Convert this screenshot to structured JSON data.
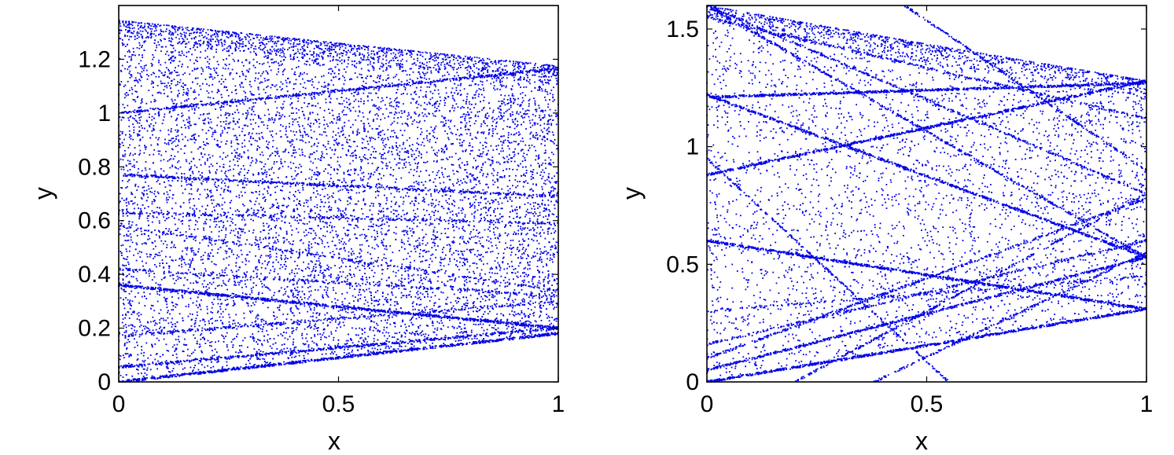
{
  "chart_data": [
    {
      "type": "scatter",
      "xlabel": "x",
      "ylabel": "y",
      "xlim": [
        0,
        1
      ],
      "ylim": [
        0,
        1.4
      ],
      "xticks": [
        0,
        0.5,
        1
      ],
      "xtick_labels": [
        "0",
        "0.5",
        "1"
      ],
      "yticks": [
        0,
        0.2,
        0.4,
        0.6,
        0.8,
        1,
        1.2
      ],
      "ytick_labels": [
        "0",
        "0.2",
        "0.4",
        "0.6",
        "0.8",
        "1",
        "1.2"
      ],
      "grid": false,
      "color": "#0000e6",
      "upper_boundary": [
        [
          0,
          1.345
        ],
        [
          1,
          1.175
        ]
      ],
      "lower_boundary": [
        [
          0,
          0.0
        ],
        [
          1,
          0.18
        ]
      ],
      "curves": [
        {
          "x": [
            0,
            1
          ],
          "y": [
            0.0,
            0.18
          ],
          "density": 1.0
        },
        {
          "x": [
            0,
            1
          ],
          "y": [
            0.055,
            0.2
          ],
          "density": 0.6
        },
        {
          "x": [
            0,
            1
          ],
          "y": [
            0.36,
            0.2
          ],
          "density": 1.0
        },
        {
          "x": [
            0,
            1
          ],
          "y": [
            0.77,
            0.69
          ],
          "density": 0.5
        },
        {
          "x": [
            0,
            1
          ],
          "y": [
            1.0,
            1.165
          ],
          "density": 0.6
        },
        {
          "x": [
            0,
            1
          ],
          "y": [
            0.63,
            0.59
          ],
          "density": 0.3
        },
        {
          "x": [
            0,
            1
          ],
          "y": [
            0.17,
            0.3
          ],
          "density": 0.3
        },
        {
          "x": [
            0,
            1
          ],
          "y": [
            0.42,
            0.32
          ],
          "density": 0.25
        },
        {
          "x": [
            0,
            1
          ],
          "y": [
            0.58,
            0.34
          ],
          "density": 0.25
        }
      ],
      "background_points": 9000
    },
    {
      "type": "scatter",
      "xlabel": "x",
      "ylabel": "y",
      "xlim": [
        0,
        1
      ],
      "ylim": [
        0,
        1.6
      ],
      "xticks": [
        0,
        0.5,
        1
      ],
      "xtick_labels": [
        "0",
        "0.5",
        "1"
      ],
      "yticks": [
        0,
        0.5,
        1,
        1.5
      ],
      "ytick_labels": [
        "0",
        "0.5",
        "1",
        "1.5"
      ],
      "grid": false,
      "color": "#0000e6",
      "upper_boundary": [
        [
          0,
          1.6
        ],
        [
          0.55,
          1.42
        ],
        [
          1,
          1.28
        ]
      ],
      "lower_boundary": [
        [
          0,
          0.0
        ],
        [
          1,
          0.31
        ]
      ],
      "curves": [
        {
          "x": [
            0,
            1
          ],
          "y": [
            0.0,
            0.31
          ],
          "density": 1.0
        },
        {
          "x": [
            0,
            1
          ],
          "y": [
            0.05,
            0.53
          ],
          "density": 0.8
        },
        {
          "x": [
            0,
            1
          ],
          "y": [
            0.6,
            0.31
          ],
          "density": 1.0
        },
        {
          "x": [
            0,
            1
          ],
          "y": [
            0.88,
            1.28
          ],
          "density": 0.9
        },
        {
          "x": [
            0,
            1
          ],
          "y": [
            1.22,
            0.53
          ],
          "density": 0.9
        },
        {
          "x": [
            0,
            1
          ],
          "y": [
            1.21,
            1.27
          ],
          "density": 0.9
        },
        {
          "x": [
            0,
            1
          ],
          "y": [
            1.6,
            0.53
          ],
          "density": 0.6
        },
        {
          "x": [
            0,
            1
          ],
          "y": [
            1.6,
            0.8
          ],
          "density": 0.5
        },
        {
          "x": [
            0,
            1
          ],
          "y": [
            1.55,
            1.12
          ],
          "density": 0.4
        },
        {
          "x": [
            0,
            1
          ],
          "y": [
            0.1,
            0.78
          ],
          "density": 0.5
        },
        {
          "x": [
            0,
            1
          ],
          "y": [
            0.16,
            0.6
          ],
          "density": 0.4
        },
        {
          "x": [
            0.2,
            1
          ],
          "y": [
            0.0,
            0.8
          ],
          "density": 0.35
        },
        {
          "x": [
            0.38,
            1
          ],
          "y": [
            0.0,
            0.55
          ],
          "density": 0.3
        },
        {
          "x": [
            0,
            1
          ],
          "y": [
            0.3,
            0.45
          ],
          "density": 0.25
        },
        {
          "x": [
            0.45,
            1
          ],
          "y": [
            1.6,
            0.9
          ],
          "density": 0.3
        },
        {
          "x": [
            0,
            0.55
          ],
          "y": [
            0.95,
            0.0
          ],
          "density": 0.3
        }
      ],
      "background_points": 3500
    }
  ]
}
